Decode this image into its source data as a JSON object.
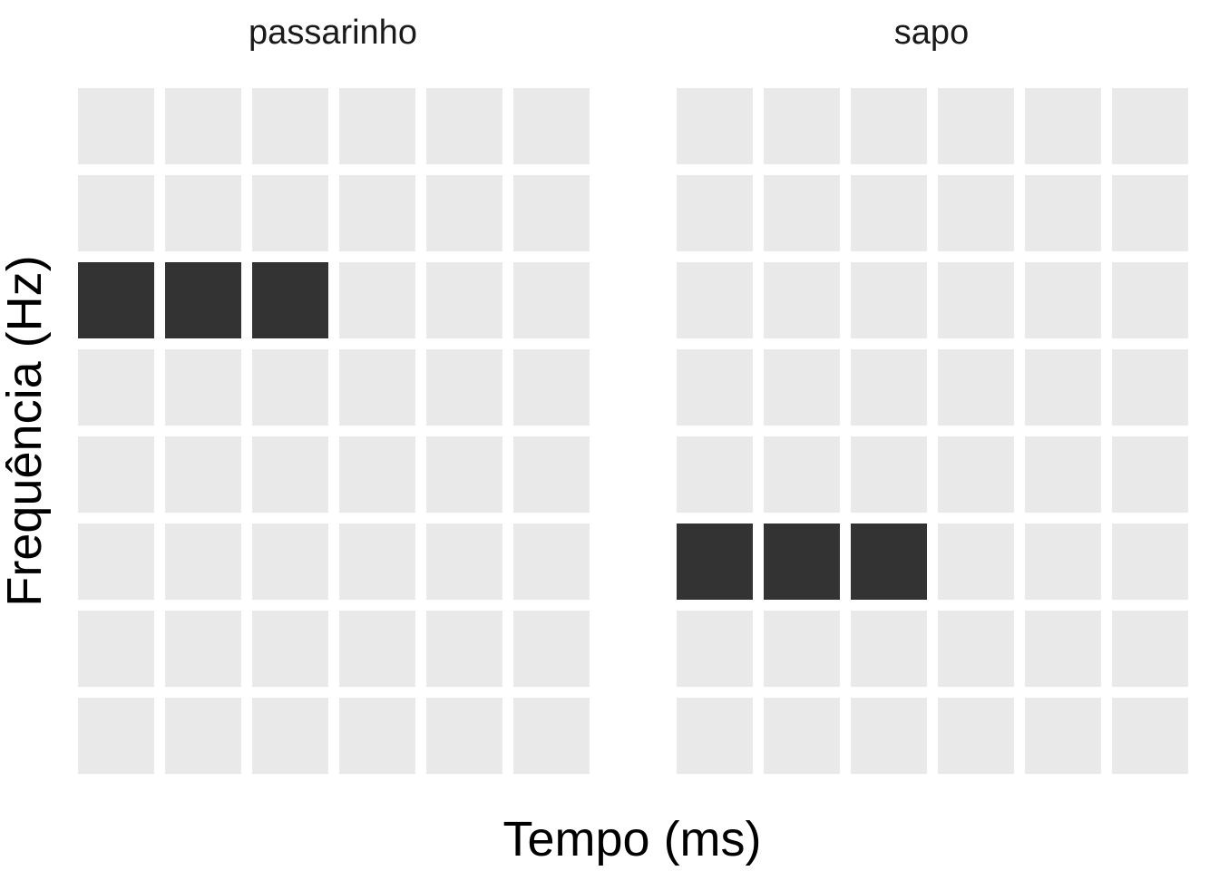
{
  "chart_data": {
    "type": "heatmap",
    "xlabel": "Tempo (ms)",
    "ylabel": "Frequência (Hz)",
    "grid": false,
    "legend": "none",
    "colors": {
      "on": "#333333",
      "off": "#e9e9e9",
      "background": "#ffffff"
    },
    "panels": [
      {
        "title": "passarinho",
        "cols": 6,
        "rows": 8,
        "cells": [
          [
            0,
            0,
            0,
            0,
            0,
            0
          ],
          [
            0,
            0,
            0,
            0,
            0,
            0
          ],
          [
            1,
            1,
            1,
            0,
            0,
            0
          ],
          [
            0,
            0,
            0,
            0,
            0,
            0
          ],
          [
            0,
            0,
            0,
            0,
            0,
            0
          ],
          [
            0,
            0,
            0,
            0,
            0,
            0
          ],
          [
            0,
            0,
            0,
            0,
            0,
            0
          ],
          [
            0,
            0,
            0,
            0,
            0,
            0
          ]
        ]
      },
      {
        "title": "sapo",
        "cols": 6,
        "rows": 8,
        "cells": [
          [
            0,
            0,
            0,
            0,
            0,
            0
          ],
          [
            0,
            0,
            0,
            0,
            0,
            0
          ],
          [
            0,
            0,
            0,
            0,
            0,
            0
          ],
          [
            0,
            0,
            0,
            0,
            0,
            0
          ],
          [
            0,
            0,
            0,
            0,
            0,
            0
          ],
          [
            1,
            1,
            1,
            0,
            0,
            0
          ],
          [
            0,
            0,
            0,
            0,
            0,
            0
          ],
          [
            0,
            0,
            0,
            0,
            0,
            0
          ]
        ]
      }
    ]
  }
}
